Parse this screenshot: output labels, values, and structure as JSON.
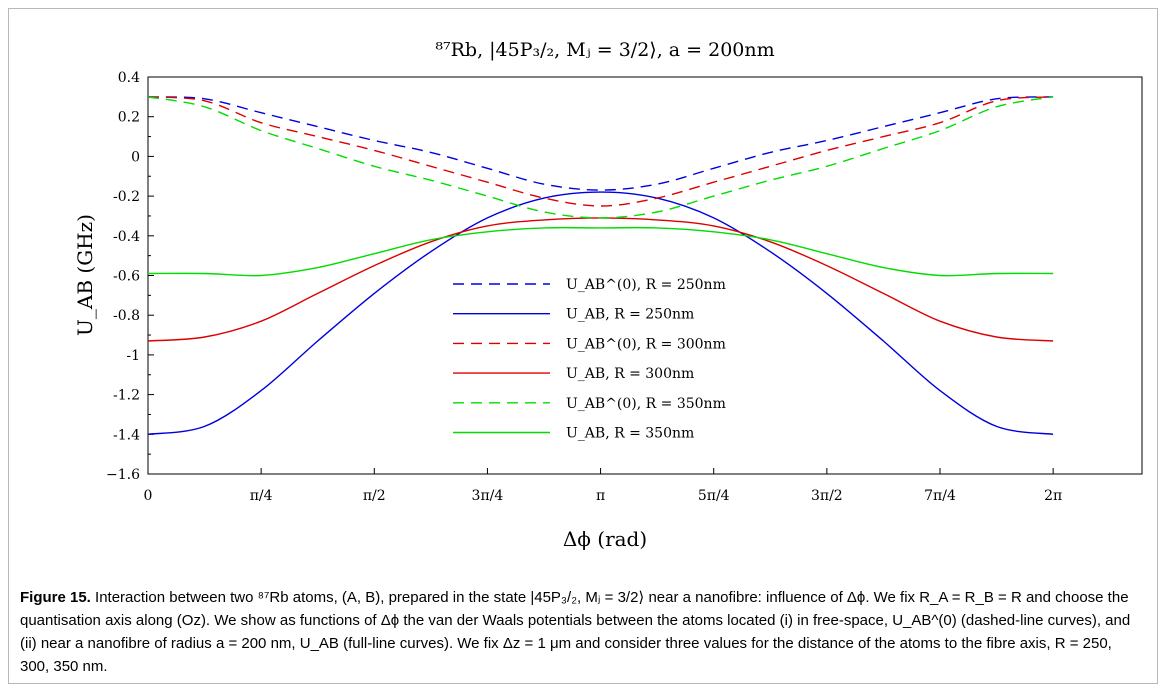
{
  "chart_data": {
    "type": "line",
    "title": "⁸⁷Rb, |45P₃/₂, Mⱼ = 3/2⟩, a = 200nm",
    "xlabel": "Δϕ (rad)",
    "ylabel": "U_AB (GHz)",
    "xlim": [
      0,
      6.9
    ],
    "ylim": [
      -1.6,
      0.4
    ],
    "x_ticks": [
      {
        "value": 0,
        "label": "0"
      },
      {
        "value": 0.7854,
        "label": "π/4"
      },
      {
        "value": 1.5708,
        "label": "π/2"
      },
      {
        "value": 2.3562,
        "label": "3π/4"
      },
      {
        "value": 3.1416,
        "label": "π"
      },
      {
        "value": 3.927,
        "label": "5π/4"
      },
      {
        "value": 4.7124,
        "label": "3π/2"
      },
      {
        "value": 5.4978,
        "label": "7π/4"
      },
      {
        "value": 6.2832,
        "label": "2π"
      }
    ],
    "y_ticks": [
      {
        "value": 0.4,
        "label": "0.4"
      },
      {
        "value": 0.2,
        "label": "0.2"
      },
      {
        "value": 0,
        "label": "0"
      },
      {
        "value": -0.2,
        "label": "-0.2"
      },
      {
        "value": -0.4,
        "label": "-0.4"
      },
      {
        "value": -0.6,
        "label": "-0.6"
      },
      {
        "value": -0.8,
        "label": "-0.8"
      },
      {
        "value": -1,
        "label": "-1"
      },
      {
        "value": -1.2,
        "label": "-1.2"
      },
      {
        "value": -1.4,
        "label": "-1.4"
      },
      {
        "value": -1.6,
        "label": "−1.6"
      }
    ],
    "legend_position": "center",
    "series": [
      {
        "name": "U_AB^(0), R = 250nm",
        "color": "#0000dd",
        "dash": "dashed",
        "x": [
          0,
          0.393,
          0.785,
          1.178,
          1.571,
          1.963,
          2.356,
          2.749,
          3.142,
          3.534,
          3.927,
          4.32,
          4.712,
          5.105,
          5.498,
          5.89,
          6.283
        ],
        "y": [
          0.3,
          0.29,
          0.22,
          0.15,
          0.08,
          0.02,
          -0.06,
          -0.14,
          -0.17,
          -0.14,
          -0.06,
          0.02,
          0.08,
          0.15,
          0.22,
          0.29,
          0.3
        ]
      },
      {
        "name": "U_AB, R = 250nm",
        "color": "#0000dd",
        "dash": "solid",
        "x": [
          0,
          0.393,
          0.785,
          1.178,
          1.571,
          1.963,
          2.356,
          2.749,
          3.142,
          3.534,
          3.927,
          4.32,
          4.712,
          5.105,
          5.498,
          5.89,
          6.283
        ],
        "y": [
          -1.4,
          -1.36,
          -1.18,
          -0.93,
          -0.69,
          -0.48,
          -0.31,
          -0.21,
          -0.18,
          -0.21,
          -0.31,
          -0.48,
          -0.69,
          -0.93,
          -1.18,
          -1.36,
          -1.4
        ]
      },
      {
        "name": "U_AB^(0), R = 300nm",
        "color": "#dd0000",
        "dash": "dashed",
        "x": [
          0,
          0.393,
          0.785,
          1.178,
          1.571,
          1.963,
          2.356,
          2.749,
          3.142,
          3.534,
          3.927,
          4.32,
          4.712,
          5.105,
          5.498,
          5.89,
          6.283
        ],
        "y": [
          0.3,
          0.28,
          0.17,
          0.1,
          0.03,
          -0.05,
          -0.13,
          -0.21,
          -0.25,
          -0.21,
          -0.13,
          -0.05,
          0.03,
          0.1,
          0.17,
          0.28,
          0.3
        ]
      },
      {
        "name": "U_AB, R = 300nm",
        "color": "#dd0000",
        "dash": "solid",
        "x": [
          0,
          0.393,
          0.785,
          1.178,
          1.571,
          1.963,
          2.356,
          2.749,
          3.142,
          3.534,
          3.927,
          4.32,
          4.712,
          5.105,
          5.498,
          5.89,
          6.283
        ],
        "y": [
          -0.93,
          -0.91,
          -0.83,
          -0.69,
          -0.55,
          -0.43,
          -0.35,
          -0.32,
          -0.31,
          -0.32,
          -0.35,
          -0.43,
          -0.55,
          -0.69,
          -0.83,
          -0.91,
          -0.93
        ]
      },
      {
        "name": "U_AB^(0), R = 350nm",
        "color": "#00dd00",
        "dash": "dashed",
        "x": [
          0,
          0.393,
          0.785,
          1.178,
          1.571,
          1.963,
          2.356,
          2.749,
          3.142,
          3.534,
          3.927,
          4.32,
          4.712,
          5.105,
          5.498,
          5.89,
          6.283
        ],
        "y": [
          0.3,
          0.25,
          0.13,
          0.04,
          -0.05,
          -0.12,
          -0.2,
          -0.28,
          -0.31,
          -0.28,
          -0.2,
          -0.12,
          -0.05,
          0.04,
          0.13,
          0.25,
          0.3
        ]
      },
      {
        "name": "U_AB, R = 350nm",
        "color": "#00dd00",
        "dash": "solid",
        "x": [
          0,
          0.393,
          0.785,
          1.178,
          1.571,
          1.963,
          2.356,
          2.749,
          3.142,
          3.534,
          3.927,
          4.32,
          4.712,
          5.105,
          5.498,
          5.89,
          6.283
        ],
        "y": [
          -0.59,
          -0.59,
          -0.6,
          -0.56,
          -0.49,
          -0.42,
          -0.38,
          -0.36,
          -0.36,
          -0.36,
          -0.38,
          -0.42,
          -0.49,
          -0.56,
          -0.6,
          -0.59,
          -0.59
        ]
      }
    ]
  },
  "caption": {
    "label": "Figure 15.",
    "text": " Interaction between two ⁸⁷Rb atoms, (A, B), prepared in the state |45P₃/₂, Mⱼ = 3/2⟩ near a nanofibre: influence of Δϕ. We fix R_A = R_B = R and choose the quantisation axis along (Oz). We show as functions of Δϕ the van der Waals potentials between the atoms located (i) in free-space, U_AB^(0) (dashed-line curves), and (ii) near a nanofibre of radius a = 200 nm, U_AB (full-line curves). We fix Δz = 1 μm and consider three values for the distance of the atoms to the fibre axis, R = 250, 300, 350 nm."
  }
}
